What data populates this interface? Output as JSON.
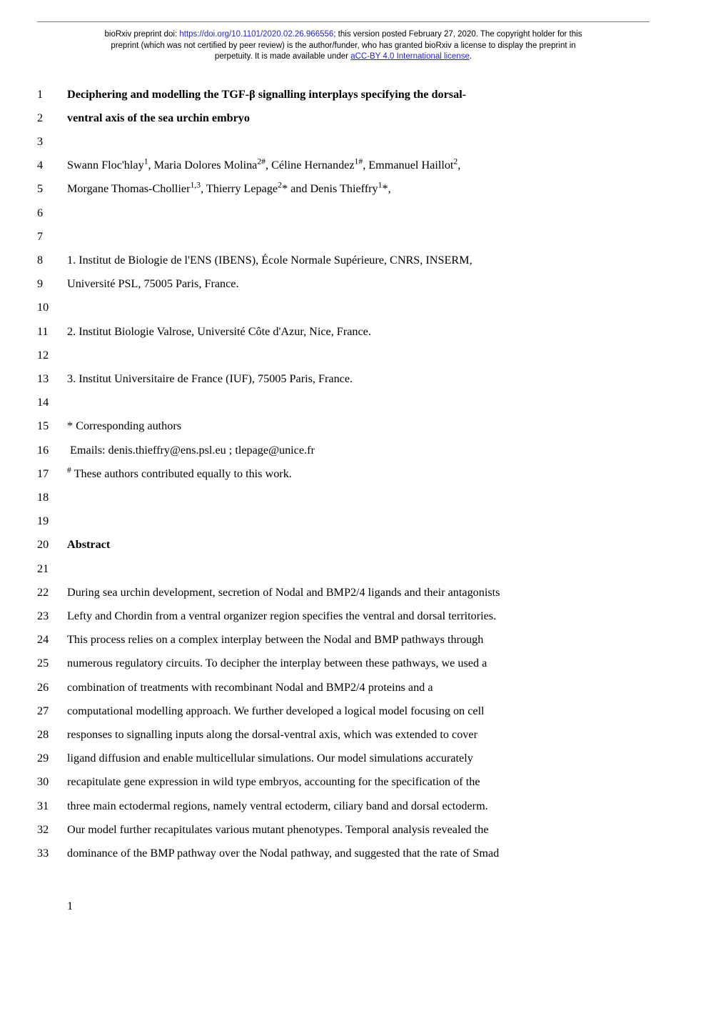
{
  "preprint_header": {
    "line1_prefix": "bioRxiv preprint doi: ",
    "doi_url": "https://doi.org/10.1101/2020.02.26.966556",
    "line1_suffix": "; this version posted February 27, 2020. The copyright holder for this",
    "line2": "preprint (which was not certified by peer review) is the author/funder, who has granted bioRxiv a license to display the preprint in",
    "line3_prefix": "perpetuity. It is made available under ",
    "license_text": "aCC-BY 4.0 International license",
    "line3_suffix": "."
  },
  "lines": [
    {
      "n": 1,
      "html": "<span class='bold'>Deciphering and modelling the TGF-β signalling interplays specifying the dorsal-</span>"
    },
    {
      "n": 2,
      "html": "<span class='bold'>ventral axis of the sea urchin embryo</span>"
    },
    {
      "n": 3,
      "html": ""
    },
    {
      "n": 4,
      "html": "Swann Floc'hlay<span class='sup'>1</span>, Maria Dolores Molina<span class='sup'>2#</span>, Céline Hernandez<span class='sup'>1#</span>, Emmanuel Haillot<span class='sup'>2</span>,"
    },
    {
      "n": 5,
      "html": "Morgane Thomas-Chollier<span class='sup'>1,3</span>, Thierry Lepage<span class='sup'>2</span>* and Denis Thieffry<span class='sup'>1</span>*,"
    },
    {
      "n": 6,
      "html": ""
    },
    {
      "n": 7,
      "html": ""
    },
    {
      "n": 8,
      "html": "1. Institut de Biologie de l'ENS (IBENS), École Normale Supérieure, CNRS, INSERM,"
    },
    {
      "n": 9,
      "html": "Université PSL, 75005 Paris, France."
    },
    {
      "n": 10,
      "html": ""
    },
    {
      "n": 11,
      "html": "2. Institut Biologie Valrose, Université Côte d'Azur, Nice, France."
    },
    {
      "n": 12,
      "html": ""
    },
    {
      "n": 13,
      "html": "3. Institut Universitaire de France (IUF), 75005 Paris, France."
    },
    {
      "n": 14,
      "html": ""
    },
    {
      "n": 15,
      "html": "* Corresponding authors"
    },
    {
      "n": 16,
      "html": "&nbsp;Emails: denis.thieffry@ens.psl.eu ; tlepage@unice.fr"
    },
    {
      "n": 17,
      "html": "<span class='sup'>#</span> These authors contributed equally to this work."
    },
    {
      "n": 18,
      "html": ""
    },
    {
      "n": 19,
      "html": ""
    },
    {
      "n": 20,
      "html": "<span class='section-head'>Abstract</span>"
    },
    {
      "n": 21,
      "html": ""
    },
    {
      "n": 22,
      "html": "During sea urchin development, secretion of Nodal and BMP2/4 ligands and their antagonists"
    },
    {
      "n": 23,
      "html": "Lefty and Chordin from a ventral organizer region specifies the ventral and dorsal territories."
    },
    {
      "n": 24,
      "html": "This process relies on a complex interplay between the Nodal and BMP pathways through"
    },
    {
      "n": 25,
      "html": "numerous regulatory circuits. To decipher the interplay between these pathways, we used a"
    },
    {
      "n": 26,
      "html": "combination of treatments with recombinant Nodal and BMP2/4 proteins and a"
    },
    {
      "n": 27,
      "html": "computational modelling approach. We further developed a logical model focusing on cell"
    },
    {
      "n": 28,
      "html": "responses to signalling inputs along the dorsal-ventral axis, which was extended to cover"
    },
    {
      "n": 29,
      "html": "ligand diffusion and enable multicellular simulations. Our model simulations accurately"
    },
    {
      "n": 30,
      "html": "recapitulate gene expression in wild type embryos, accounting for the specification of the"
    },
    {
      "n": 31,
      "html": "three main ectodermal regions, namely ventral ectoderm, ciliary band and dorsal ectoderm."
    },
    {
      "n": 32,
      "html": "Our model further recapitulates various mutant phenotypes. Temporal analysis revealed the"
    },
    {
      "n": 33,
      "html": "dominance of the BMP pathway over the Nodal pathway, and suggested that the rate of Smad"
    }
  ],
  "page_number": "1"
}
